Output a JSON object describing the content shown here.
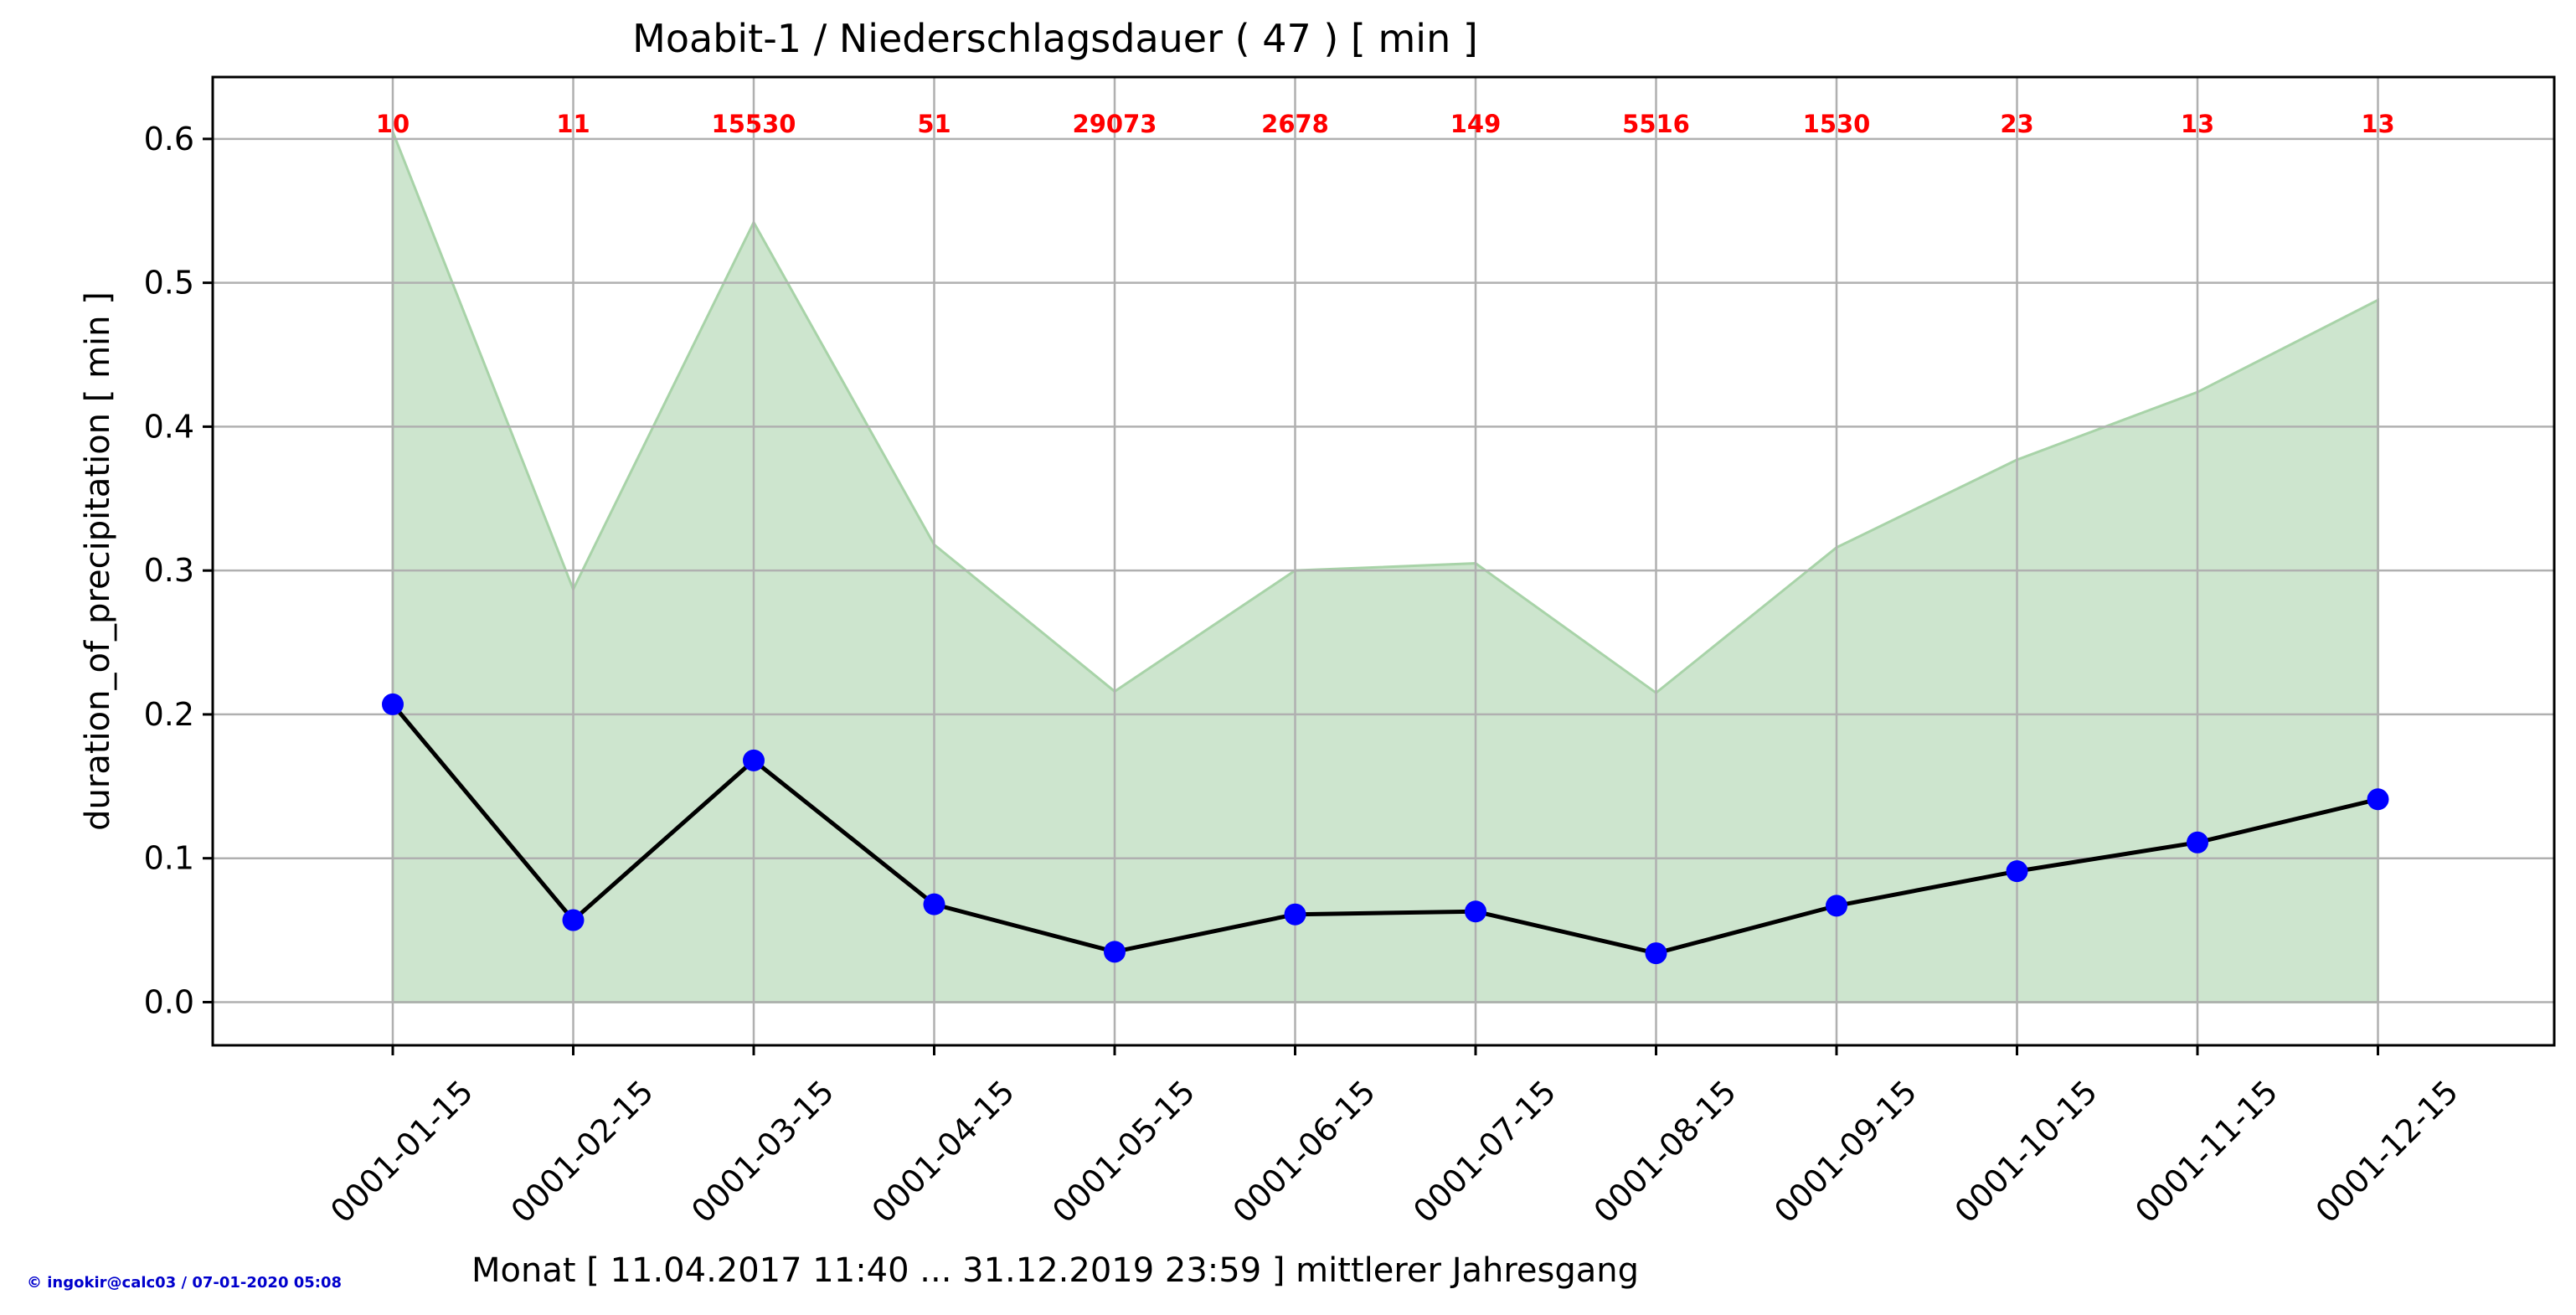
{
  "chart_data": {
    "type": "line",
    "title": "Moabit-1 / Niederschlagsdauer ( 47 ) [ min ]",
    "xlabel": "Monat [ 11.04.2017 11:40 ... 31.12.2019 23:59 ] mittlerer Jahresgang",
    "ylabel": "duration_of_precipitation [ min ]",
    "categories": [
      "0001-01-15",
      "0001-02-15",
      "0001-03-15",
      "0001-04-15",
      "0001-05-15",
      "0001-06-15",
      "0001-07-15",
      "0001-08-15",
      "0001-09-15",
      "0001-10-15",
      "0001-11-15",
      "0001-12-15"
    ],
    "series": [
      {
        "values": [
          0.207,
          0.057,
          0.168,
          0.068,
          0.035,
          0.061,
          0.063,
          0.034,
          0.067,
          0.091,
          0.111,
          0.141
        ]
      },
      {
        "type": "area",
        "values": [
          0.605,
          0.287,
          0.542,
          0.318,
          0.216,
          0.3,
          0.305,
          0.215,
          0.316,
          0.377,
          0.424,
          0.488
        ]
      }
    ],
    "counts": [
      "10",
      "11",
      "15530",
      "51",
      "29073",
      "2678",
      "149",
      "5516",
      "1530",
      "23",
      "13",
      "13"
    ],
    "ylim": [
      -0.03,
      0.643
    ],
    "yticks": [
      "0.0",
      "0.1",
      "0.2",
      "0.3",
      "0.4",
      "0.5",
      "0.6"
    ],
    "grid": true
  },
  "colors": {
    "line": "#000000",
    "marker": "#0000ff",
    "area_fill": "#cde5ce",
    "area_edge": "#a8d3a8",
    "count_text": "#ff0000",
    "grid": "#b0b0b0",
    "footer_text": "#0000cc"
  },
  "footer": "© ingokir@calc03 / 07-01-2020 05:08"
}
